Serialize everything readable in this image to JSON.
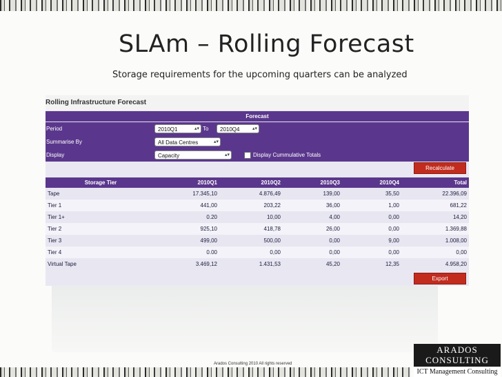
{
  "slide": {
    "title": "SLAm – Rolling Forecast",
    "subtitle": "Storage requirements for the upcoming quarters can be analyzed",
    "footer": "Arados Consulting 2010 All rights reserved"
  },
  "logo": {
    "line1": "ARADOS",
    "line2": "CONSULTING",
    "tagline": "ICT Management Consulting"
  },
  "app": {
    "title": "Rolling Infrastructure Forecast",
    "section_header": "Forecast",
    "period": {
      "label": "Period",
      "from": "2010Q1",
      "to_label": "To",
      "to": "2010Q4"
    },
    "summarise": {
      "label": "Summarise By",
      "value": "All Data Centres"
    },
    "display": {
      "label": "Display",
      "value": "Capacity",
      "cumulative_label": "Display Cummulative Totals",
      "cumulative_checked": false
    },
    "recalculate_label": "Recalculate",
    "export_label": "Export"
  },
  "table": {
    "headers": [
      "Storage Tier",
      "2010Q1",
      "2010Q2",
      "2010Q3",
      "2010Q4",
      "Total"
    ],
    "rows": [
      [
        "Tape",
        "17.345,10",
        "4.876,49",
        "139,00",
        "35,50",
        "22.396,09"
      ],
      [
        "Tier 1",
        "441,00",
        "203,22",
        "36,00",
        "1,00",
        "681,22"
      ],
      [
        "Tier 1+",
        "0.20",
        "10,00",
        "4,00",
        "0,00",
        "14,20"
      ],
      [
        "Tier 2",
        "925,10",
        "418,78",
        "26,00",
        "0,00",
        "1.369,88"
      ],
      [
        "Tier 3",
        "499,00",
        "500,00",
        "0,00",
        "9,00",
        "1.008,00"
      ],
      [
        "Tier 4",
        "0.00",
        "0,00",
        "0,00",
        "0,00",
        "0,00"
      ],
      [
        "Virtual Tape",
        "3.469,12",
        "1.431,53",
        "45,20",
        "12,35",
        "4.958,20"
      ]
    ]
  }
}
